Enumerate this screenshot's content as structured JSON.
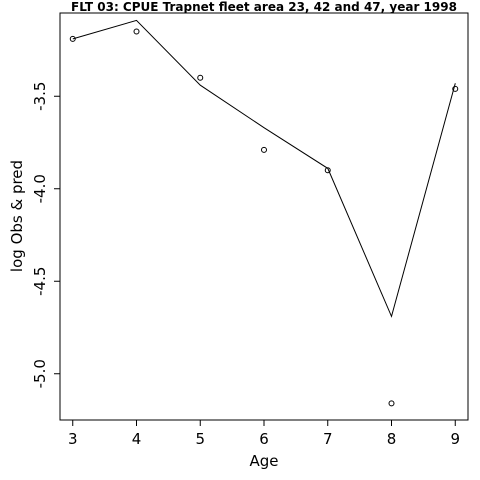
{
  "chart_data": {
    "type": "line",
    "title": "FLT 03: CPUE Trapnet fleet area 23, 42 and 47, year 1998",
    "xlabel": "Age",
    "ylabel": "log Obs & pred",
    "xlim": [
      2.8,
      9.2
    ],
    "ylim": [
      -5.25,
      -3.05
    ],
    "x_ticks": [
      "3",
      "4",
      "5",
      "6",
      "7",
      "8",
      "9"
    ],
    "y_ticks": [
      "-5.0",
      "-4.5",
      "-4.0",
      "-3.5"
    ],
    "x_tick_values": [
      3,
      4,
      5,
      6,
      7,
      8,
      9
    ],
    "y_tick_values": [
      -5.0,
      -4.5,
      -4.0,
      -3.5
    ],
    "grid": false,
    "series": [
      {
        "kind": "line",
        "x": [
          3,
          4,
          5,
          6,
          7,
          8,
          9
        ],
        "values": [
          -3.19,
          -3.09,
          -3.44,
          -3.67,
          -3.89,
          -4.69,
          -3.43
        ]
      },
      {
        "kind": "points",
        "x": [
          3,
          4,
          5,
          6,
          7,
          8,
          9
        ],
        "values": [
          -3.19,
          -3.15,
          -3.4,
          -3.79,
          -3.9,
          -5.16,
          -3.46
        ]
      }
    ]
  }
}
